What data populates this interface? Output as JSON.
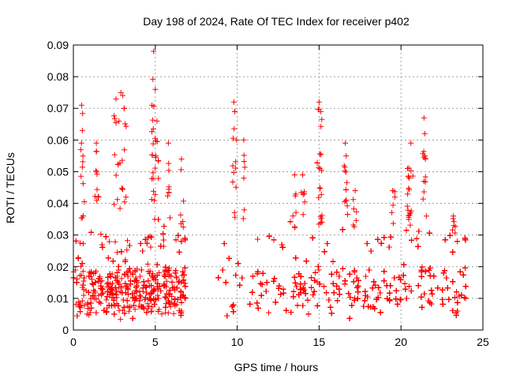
{
  "chart_data": {
    "type": "scatter",
    "title": "Day 198 of 2024, Rate Of TEC Index for receiver p402",
    "xlabel": "GPS time / hours",
    "ylabel": "ROTI / TECUs",
    "xlim": [
      0,
      25
    ],
    "ylim": [
      0,
      0.09
    ],
    "x_ticks": [
      0,
      5,
      10,
      15,
      20,
      25
    ],
    "x_tick_labels": [
      "0",
      "5",
      "10",
      "15",
      "20",
      "25"
    ],
    "y_ticks": [
      0,
      0.01,
      0.02,
      0.03,
      0.04,
      0.05,
      0.06,
      0.07,
      0.08,
      0.09
    ],
    "y_tick_labels": [
      "0",
      "0.01",
      "0.02",
      "0.03",
      "0.04",
      "0.05",
      "0.06",
      "0.07",
      "0.08",
      "0.09"
    ],
    "grid": true,
    "marker": "+",
    "color": "#ff0000",
    "series": [
      {
        "name": "ROTI p402",
        "segments": [
          {
            "x_start": 0.0,
            "x_end": 6.85
          },
          {
            "x_start": 8.85,
            "x_end": 24.0
          }
        ],
        "peaks": [
          {
            "x": 0.5,
            "y": 0.071
          },
          {
            "x": 0.55,
            "y": 0.063
          },
          {
            "x": 1.4,
            "y": 0.059
          },
          {
            "x": 2.6,
            "y": 0.073
          },
          {
            "x": 2.9,
            "y": 0.075
          },
          {
            "x": 3.1,
            "y": 0.07
          },
          {
            "x": 4.8,
            "y": 0.071
          },
          {
            "x": 4.9,
            "y": 0.088
          },
          {
            "x": 5.0,
            "y": 0.076
          },
          {
            "x": 5.1,
            "y": 0.066
          },
          {
            "x": 5.8,
            "y": 0.059
          },
          {
            "x": 6.6,
            "y": 0.054
          },
          {
            "x": 9.8,
            "y": 0.072
          },
          {
            "x": 9.85,
            "y": 0.069
          },
          {
            "x": 10.4,
            "y": 0.06
          },
          {
            "x": 13.5,
            "y": 0.049
          },
          {
            "x": 14.0,
            "y": 0.049
          },
          {
            "x": 15.0,
            "y": 0.072
          },
          {
            "x": 15.1,
            "y": 0.069
          },
          {
            "x": 15.05,
            "y": 0.051
          },
          {
            "x": 16.6,
            "y": 0.059
          },
          {
            "x": 16.65,
            "y": 0.055
          },
          {
            "x": 17.2,
            "y": 0.044
          },
          {
            "x": 19.5,
            "y": 0.044
          },
          {
            "x": 20.4,
            "y": 0.051
          },
          {
            "x": 20.5,
            "y": 0.048
          },
          {
            "x": 20.6,
            "y": 0.059
          },
          {
            "x": 21.4,
            "y": 0.067
          },
          {
            "x": 21.45,
            "y": 0.062
          },
          {
            "x": 23.2,
            "y": 0.036
          }
        ],
        "typical_range": [
          0.003,
          0.03
        ]
      }
    ]
  }
}
